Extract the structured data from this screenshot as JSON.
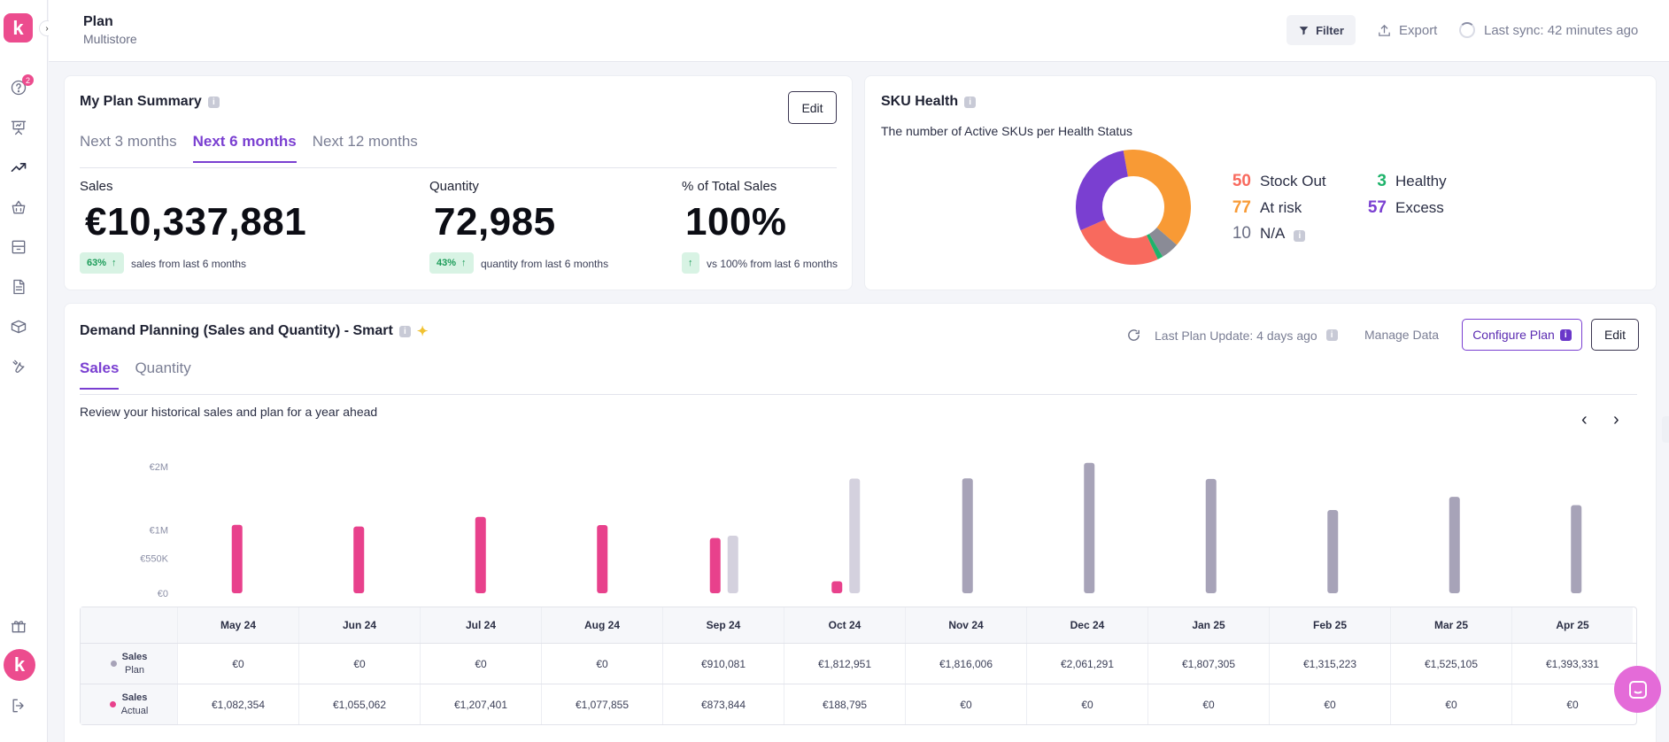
{
  "sidebar": {
    "logo": "k",
    "collapse_icon": "chevron-right-icon",
    "badge_count": "2",
    "avatar_initial": "k",
    "items": [
      "help-icon",
      "presentation-icon",
      "trending-up-icon",
      "basket-icon",
      "storage-icon",
      "document-icon",
      "box-icon",
      "tools-icon",
      "gift-icon",
      "logout-icon"
    ]
  },
  "header": {
    "title": "Plan",
    "subtitle": "Multistore",
    "filter_label": "Filter",
    "export_label": "Export",
    "sync_label": "Last sync: 42 minutes ago"
  },
  "plan_summary": {
    "title": "My Plan Summary",
    "edit_label": "Edit",
    "tabs": [
      "Next 3 months",
      "Next 6 months",
      "Next 12 months"
    ],
    "active_tab": 1,
    "metrics": [
      {
        "label": "Sales",
        "value": "€10,337,881",
        "chip": "63%",
        "note": "sales from last 6 months"
      },
      {
        "label": "Quantity",
        "value": "72,985",
        "chip": "43%",
        "note": "quantity from last 6 months"
      },
      {
        "label": "% of Total Sales",
        "value": "100%",
        "chip": "",
        "note": "vs 100% from last 6 months"
      }
    ]
  },
  "sku_health": {
    "title": "SKU Health",
    "subtitle": "The number of Active SKUs per Health Status",
    "legend": [
      {
        "count": "50",
        "label": "Stock Out",
        "color": "#f86a5e"
      },
      {
        "count": "77",
        "label": "At risk",
        "color": "#f89a35"
      },
      {
        "count": "10",
        "label": "N/A",
        "color": "#6b6f85"
      },
      {
        "count": "3",
        "label": "Healthy",
        "color": "#1fb36b"
      },
      {
        "count": "57",
        "label": "Excess",
        "color": "#7a3fd1"
      }
    ]
  },
  "demand": {
    "title": "Demand Planning (Sales and Quantity) - Smart",
    "last_update": "Last Plan Update: 4 days ago",
    "manage_label": "Manage Data",
    "configure_label": "Configure Plan",
    "edit_label": "Edit",
    "tabs": [
      "Sales",
      "Quantity"
    ],
    "review_text": "Review your historical sales and plan for a year ahead",
    "row_plan_l1": "Sales",
    "row_plan_l2": "Plan",
    "row_actual_l1": "Sales",
    "row_actual_l2": "Actual"
  },
  "chart_data": {
    "type": "bar",
    "categories": [
      "May 24",
      "Jun 24",
      "Jul 24",
      "Aug 24",
      "Sep 24",
      "Oct 24",
      "Nov 24",
      "Dec 24",
      "Jan 25",
      "Feb 25",
      "Mar 25",
      "Apr 25"
    ],
    "series": [
      {
        "name": "Sales Actual",
        "color": "#e8418c",
        "values": [
          1082354,
          1055062,
          1207401,
          1077855,
          873844,
          188795,
          0,
          0,
          0,
          0,
          0,
          0
        ]
      },
      {
        "name": "Sales Plan",
        "color": "#a7a3b8",
        "values": [
          0,
          0,
          0,
          0,
          910081,
          1812951,
          1816006,
          2061291,
          1807305,
          1315223,
          1525105,
          1393331
        ]
      }
    ],
    "y_ticks": [
      "€0",
      "€550K",
      "€1M",
      "€2M"
    ],
    "y_tick_values": [
      0,
      550000,
      1000000,
      2000000
    ],
    "ylim": [
      0,
      2100000
    ],
    "table": {
      "plan": [
        "€0",
        "€0",
        "€0",
        "€0",
        "€910,081",
        "€1,812,951",
        "€1,816,006",
        "€2,061,291",
        "€1,807,305",
        "€1,315,223",
        "€1,525,105",
        "€1,393,331"
      ],
      "actual": [
        "€1,082,354",
        "€1,055,062",
        "€1,207,401",
        "€1,077,855",
        "€873,844",
        "€188,795",
        "€0",
        "€0",
        "€0",
        "€0",
        "€0",
        "€0"
      ]
    }
  }
}
